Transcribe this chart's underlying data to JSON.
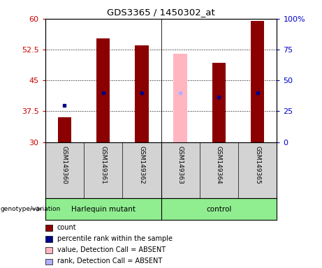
{
  "title": "GDS3365 / 1450302_at",
  "samples": [
    "GSM149360",
    "GSM149361",
    "GSM149362",
    "GSM149363",
    "GSM149364",
    "GSM149365"
  ],
  "bar_bottom": 30,
  "count_values": [
    36.0,
    55.2,
    53.5,
    null,
    49.2,
    59.5
  ],
  "count_absent_values": [
    null,
    null,
    null,
    51.5,
    null,
    null
  ],
  "percentile_values": [
    39.0,
    42.0,
    42.0,
    null,
    41.0,
    42.0
  ],
  "percentile_absent_values": [
    null,
    null,
    null,
    42.0,
    null,
    null
  ],
  "bar_color_present": "#8B0000",
  "bar_color_absent": "#FFB6C1",
  "percentile_color_present": "#00008B",
  "percentile_color_absent": "#B0B0FF",
  "ylim_left": [
    30,
    60
  ],
  "ylim_right": [
    0,
    100
  ],
  "yticks_left": [
    30,
    37.5,
    45,
    52.5,
    60
  ],
  "yticks_right": [
    0,
    25,
    50,
    75,
    100
  ],
  "genotype_groups": [
    {
      "label": "Harlequin mutant",
      "start": 0,
      "end": 3,
      "color": "#90EE90"
    },
    {
      "label": "control",
      "start": 3,
      "end": 6,
      "color": "#90EE90"
    }
  ],
  "bar_width": 0.35,
  "plot_bg_color": "#FFFFFF",
  "xlabel_area_color": "#D3D3D3",
  "axis_label_color_left": "#CC0000",
  "axis_label_color_right": "#0000CC",
  "legend_items": [
    {
      "label": "count",
      "color": "#8B0000"
    },
    {
      "label": "percentile rank within the sample",
      "color": "#00008B"
    },
    {
      "label": "value, Detection Call = ABSENT",
      "color": "#FFB6C1"
    },
    {
      "label": "rank, Detection Call = ABSENT",
      "color": "#B0B0FF"
    }
  ]
}
